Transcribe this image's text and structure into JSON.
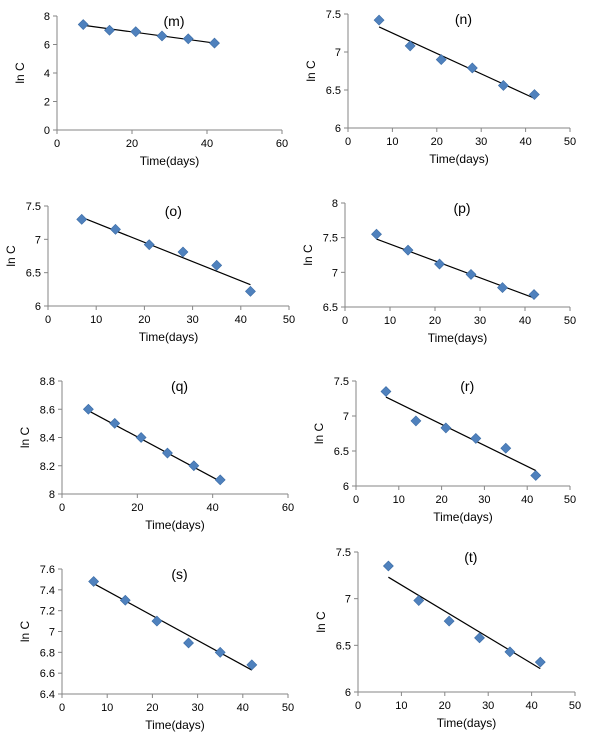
{
  "chart_data": [
    {
      "type": "scatter",
      "title": "(m)",
      "xlabel": "Time(days)",
      "ylabel": "ln C",
      "xlim": [
        0,
        60
      ],
      "ylim": [
        0,
        8
      ],
      "xticks": [
        "0",
        "20",
        "40",
        "60"
      ],
      "yticks": [
        "0",
        "2",
        "4",
        "6",
        "8"
      ],
      "grid": false,
      "series": [
        {
          "x": [
            7,
            14,
            21,
            28,
            35,
            42
          ],
          "y": [
            7.4,
            7.0,
            6.9,
            6.6,
            6.4,
            6.1
          ]
        }
      ],
      "trendline": {
        "x": [
          7,
          42
        ],
        "y": [
          7.35,
          6.1
        ]
      },
      "marker_color": "#4F81BD",
      "line_color": "#000000"
    },
    {
      "type": "scatter",
      "title": "(n)",
      "xlabel": "Time(days)",
      "ylabel": "ln C",
      "xlim": [
        0,
        50
      ],
      "ylim": [
        6,
        7.5
      ],
      "xticks": [
        "0",
        "10",
        "20",
        "30",
        "40",
        "50"
      ],
      "yticks": [
        "6",
        "6.5",
        "7",
        "7.5"
      ],
      "grid": false,
      "series": [
        {
          "x": [
            7,
            14,
            21,
            28,
            35,
            42
          ],
          "y": [
            7.42,
            7.08,
            6.9,
            6.79,
            6.56,
            6.44
          ]
        }
      ],
      "trendline": {
        "x": [
          7,
          42
        ],
        "y": [
          7.33,
          6.39
        ]
      },
      "marker_color": "#4F81BD",
      "line_color": "#000000"
    },
    {
      "type": "scatter",
      "title": "(o)",
      "xlabel": "Time(days)",
      "ylabel": "ln C",
      "xlim": [
        0,
        50
      ],
      "ylim": [
        6,
        7.5
      ],
      "xticks": [
        "0",
        "10",
        "20",
        "30",
        "40",
        "50"
      ],
      "yticks": [
        "6",
        "6.5",
        "7",
        "7.5"
      ],
      "grid": false,
      "series": [
        {
          "x": [
            7,
            14,
            21,
            28,
            35,
            42
          ],
          "y": [
            7.3,
            7.15,
            6.92,
            6.81,
            6.61,
            6.22
          ]
        }
      ],
      "trendline": {
        "x": [
          7,
          42
        ],
        "y": [
          7.33,
          6.32
        ]
      },
      "marker_color": "#4F81BD",
      "line_color": "#000000"
    },
    {
      "type": "scatter",
      "title": "(p)",
      "xlabel": "Time(days)",
      "ylabel": "ln C",
      "xlim": [
        0,
        50
      ],
      "ylim": [
        6.5,
        8
      ],
      "xticks": [
        "0",
        "10",
        "20",
        "30",
        "40",
        "50"
      ],
      "yticks": [
        "6.5",
        "7",
        "7.5",
        "8"
      ],
      "grid": false,
      "series": [
        {
          "x": [
            7,
            14,
            21,
            28,
            35,
            42
          ],
          "y": [
            7.55,
            7.32,
            7.12,
            6.97,
            6.78,
            6.68
          ]
        }
      ],
      "trendline": {
        "x": [
          7,
          42
        ],
        "y": [
          7.48,
          6.63
        ]
      },
      "marker_color": "#4F81BD",
      "line_color": "#000000"
    },
    {
      "type": "scatter",
      "title": "(q)",
      "xlabel": "Time(days)",
      "ylabel": "ln C",
      "xlim": [
        0,
        60
      ],
      "ylim": [
        8,
        8.8
      ],
      "xticks": [
        "0",
        "20",
        "40",
        "60"
      ],
      "yticks": [
        "8",
        "8.2",
        "8.4",
        "8.6",
        "8.8"
      ],
      "grid": false,
      "series": [
        {
          "x": [
            7,
            14,
            21,
            28,
            35,
            42
          ],
          "y": [
            8.6,
            8.5,
            8.4,
            8.29,
            8.2,
            8.1
          ]
        }
      ],
      "trendline": {
        "x": [
          7,
          42
        ],
        "y": [
          8.59,
          8.09
        ]
      },
      "marker_color": "#4F81BD",
      "line_color": "#000000"
    },
    {
      "type": "scatter",
      "title": "(r)",
      "xlabel": "Time(days)",
      "ylabel": "ln C",
      "xlim": [
        0,
        50
      ],
      "ylim": [
        6,
        7.5
      ],
      "xticks": [
        "0",
        "10",
        "20",
        "30",
        "40",
        "50"
      ],
      "yticks": [
        "6",
        "6.5",
        "7",
        "7.5"
      ],
      "grid": false,
      "series": [
        {
          "x": [
            7,
            14,
            21,
            28,
            35,
            42
          ],
          "y": [
            7.35,
            6.93,
            6.83,
            6.68,
            6.54,
            6.15
          ]
        }
      ],
      "trendline": {
        "x": [
          7,
          42
        ],
        "y": [
          7.27,
          6.22
        ]
      },
      "marker_color": "#4F81BD",
      "line_color": "#000000"
    },
    {
      "type": "scatter",
      "title": "(s)",
      "xlabel": "Time(days)",
      "ylabel": "ln C",
      "xlim": [
        0,
        50
      ],
      "ylim": [
        6.4,
        7.6
      ],
      "xticks": [
        "0",
        "10",
        "20",
        "30",
        "40",
        "50"
      ],
      "yticks": [
        "6.4",
        "6.6",
        "6.8",
        "7",
        "7.2",
        "7.4",
        "7.6"
      ],
      "grid": false,
      "series": [
        {
          "x": [
            7,
            14,
            21,
            28,
            35,
            42
          ],
          "y": [
            7.48,
            7.3,
            7.1,
            6.89,
            6.8,
            6.68
          ]
        }
      ],
      "trendline": {
        "x": [
          7,
          42
        ],
        "y": [
          7.46,
          6.63
        ]
      },
      "marker_color": "#4F81BD",
      "line_color": "#000000"
    },
    {
      "type": "scatter",
      "title": "(t)",
      "xlabel": "Time(days)",
      "ylabel": "ln C",
      "xlim": [
        0,
        50
      ],
      "ylim": [
        6,
        7.5
      ],
      "xticks": [
        "0",
        "10",
        "20",
        "30",
        "40",
        "50"
      ],
      "yticks": [
        "6",
        "6.5",
        "7",
        "7.5"
      ],
      "grid": false,
      "series": [
        {
          "x": [
            7,
            14,
            21,
            28,
            35,
            42
          ],
          "y": [
            7.35,
            6.98,
            6.76,
            6.58,
            6.43,
            6.32
          ]
        }
      ],
      "trendline": {
        "x": [
          7,
          42
        ],
        "y": [
          7.23,
          6.25
        ]
      },
      "marker_color": "#4F81BD",
      "line_color": "#000000"
    }
  ]
}
